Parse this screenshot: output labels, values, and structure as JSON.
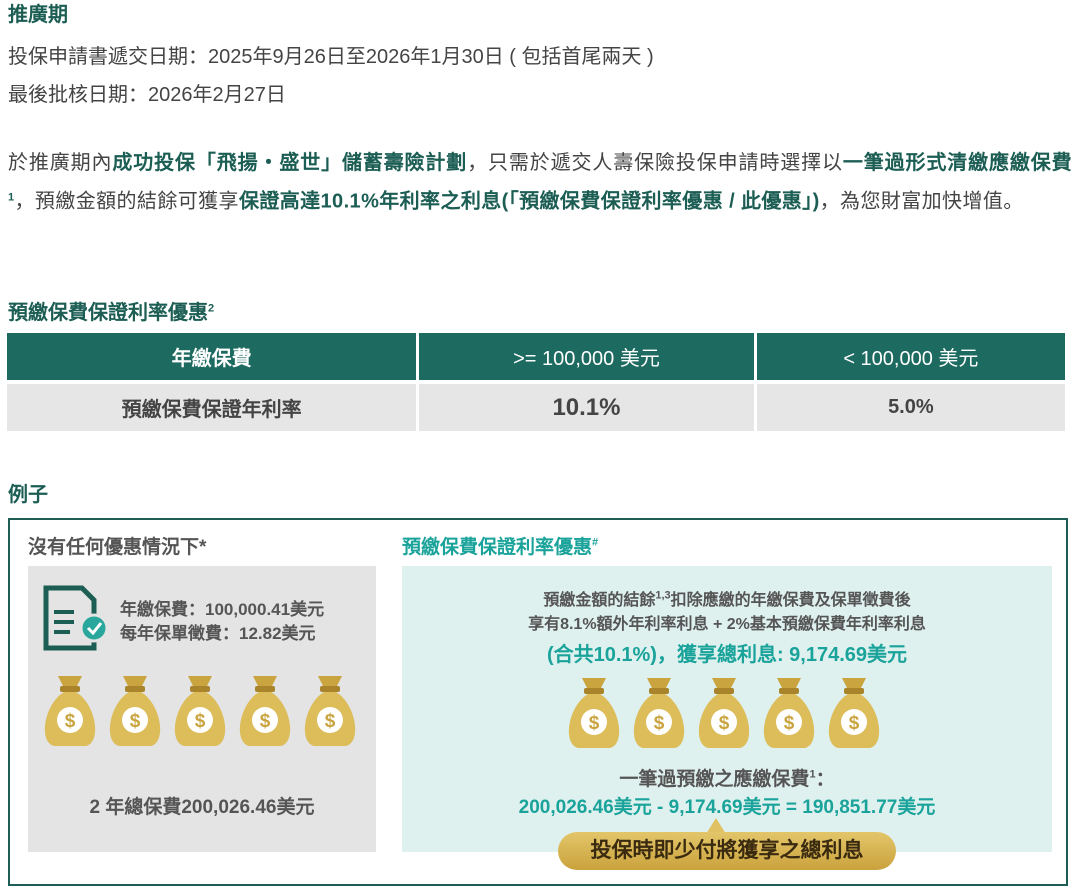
{
  "promo": {
    "title": "推廣期",
    "submission": "投保申請書遞交日期：2025年9月26日至2026年1月30日 ( 包括首尾兩天 )",
    "approval": "最後批核日期：2026年2月27日"
  },
  "intro": [
    "於推廣期內",
    "成功投保「飛揚・盛世」儲蓄壽險計劃",
    "，只需於遞交人壽保險投保申請時選擇以",
    "一筆過形式清繳應繳保費",
    "1",
    "，預繳金額的結餘可獲享",
    "保證高達10.1%年利率之利息(「預繳保費保證利率優惠 / 此優惠」)",
    "，為您財富加快增值。"
  ],
  "rate_table": {
    "title": "預繳保費保證利率優惠",
    "title_note": "2",
    "header": [
      "年繳保費",
      ">= 100,000 美元",
      "< 100,000 美元"
    ],
    "rows": [
      [
        "預繳保費保證年利率",
        "10.1%",
        "5.0%"
      ]
    ]
  },
  "example": {
    "title": "例子",
    "bag_symbol": "$",
    "left": {
      "title": "沒有任何優惠情況下*",
      "lines": [
        "年繳保費：100,000.41美元",
        "每年保單徵費：12.82美元"
      ],
      "total": "2 年總保費200,026.46美元"
    },
    "right": {
      "title": "預繳保費保證利率優惠",
      "title_note": "#",
      "line1": "預繳金額的結餘",
      "line1_note": "1,3",
      "line1_rest": "扣除應繳的年繳保費及保單徵費後",
      "line2": "享有8.1%額外年利率利息 + 2%基本預繳保費年利率利息",
      "line3": "(合共10.1%)，獲享總利息: 9,174.69美元",
      "premium_label": "一筆過預繳之應繳保費",
      "premium_note": "1",
      "premium_colon": "：",
      "formula": "200,026.46美元 - 9,174.69美元 = 190,851.77美元",
      "callout": "投保時即少付將獲享之總利息"
    }
  }
}
